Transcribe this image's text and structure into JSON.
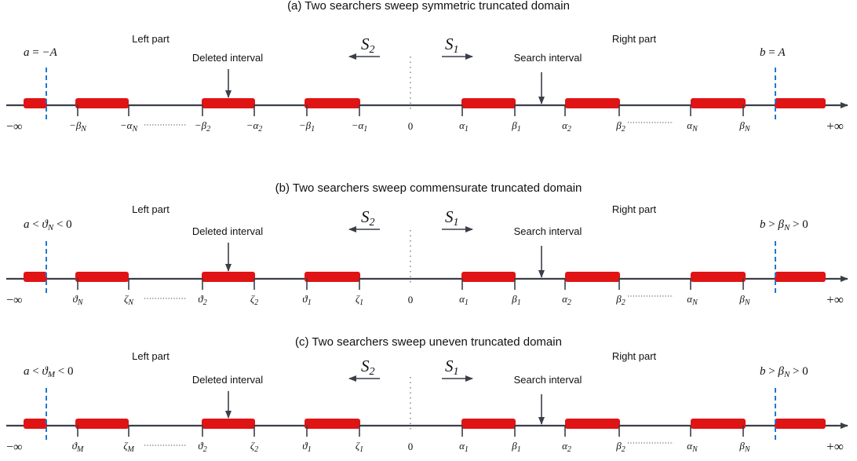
{
  "panels": [
    {
      "title": "(a) Two searchers  sweep symmetric truncated domain",
      "left_part": "Left part",
      "right_part": "Right part",
      "deleted": "Deleted interval",
      "search": "Search interval",
      "searcher_left": {
        "main": "S",
        "sub": "2"
      },
      "searcher_right": {
        "main": "S",
        "sub": "1"
      },
      "bound_left": [
        {
          "t": "a",
          "i": true
        },
        {
          "t": " = ",
          "i": false
        },
        {
          "t": "−A",
          "i": true
        }
      ],
      "bound_right": [
        {
          "t": "b",
          "i": true
        },
        {
          "t": " = ",
          "i": false
        },
        {
          "t": "A",
          "i": true
        }
      ],
      "neg_inf": "−∞",
      "pos_inf": "+∞",
      "zero": "0",
      "left_ticks": [
        {
          "pre": "−",
          "main": "β",
          "sub": "N"
        },
        {
          "pre": "−",
          "main": "α",
          "sub": "N"
        },
        {
          "pre": "−",
          "main": "β",
          "sub": "2"
        },
        {
          "pre": "−",
          "main": "α",
          "sub": "2"
        },
        {
          "pre": "−",
          "main": "β",
          "sub": "1"
        },
        {
          "pre": "−",
          "main": "α",
          "sub": "1"
        }
      ],
      "right_ticks": [
        {
          "pre": "",
          "main": "α",
          "sub": "1"
        },
        {
          "pre": "",
          "main": "β",
          "sub": "1"
        },
        {
          "pre": "",
          "main": "α",
          "sub": "2"
        },
        {
          "pre": "",
          "main": "β",
          "sub": "2"
        },
        {
          "pre": "",
          "main": "α",
          "sub": "N"
        },
        {
          "pre": "",
          "main": "β",
          "sub": "N"
        }
      ]
    },
    {
      "title": "(b) Two searchers  sweep commensurate truncated domain",
      "left_part": "Left part",
      "right_part": "Right part",
      "deleted": "Deleted interval",
      "search": "Search interval",
      "searcher_left": {
        "main": "S",
        "sub": "2"
      },
      "searcher_right": {
        "main": "S",
        "sub": "1"
      },
      "bound_left": [
        {
          "t": "a",
          "i": true
        },
        {
          "t": " < ",
          "i": false
        },
        {
          "t": "ϑ",
          "i": true
        },
        {
          "t": "N",
          "i": true,
          "sub": true
        },
        {
          "t": " < 0",
          "i": false
        }
      ],
      "bound_right": [
        {
          "t": "b",
          "i": true
        },
        {
          "t": " > ",
          "i": false
        },
        {
          "t": "β",
          "i": true
        },
        {
          "t": "N",
          "i": true,
          "sub": true
        },
        {
          "t": " > 0",
          "i": false
        }
      ],
      "neg_inf": "−∞",
      "pos_inf": "+∞",
      "zero": "0",
      "left_ticks": [
        {
          "pre": "",
          "main": "ϑ",
          "sub": "N"
        },
        {
          "pre": "",
          "main": "ζ",
          "sub": "N"
        },
        {
          "pre": "",
          "main": "ϑ",
          "sub": "2"
        },
        {
          "pre": "",
          "main": "ζ",
          "sub": "2"
        },
        {
          "pre": "",
          "main": "ϑ",
          "sub": "1"
        },
        {
          "pre": "",
          "main": "ζ",
          "sub": "1"
        }
      ],
      "right_ticks": [
        {
          "pre": "",
          "main": "α",
          "sub": "1"
        },
        {
          "pre": "",
          "main": "β",
          "sub": "1"
        },
        {
          "pre": "",
          "main": "α",
          "sub": "2"
        },
        {
          "pre": "",
          "main": "β",
          "sub": "2"
        },
        {
          "pre": "",
          "main": "α",
          "sub": "N"
        },
        {
          "pre": "",
          "main": "β",
          "sub": "N"
        }
      ]
    },
    {
      "title": "(c) Two searchers  sweep uneven truncated domain",
      "left_part": "Left part",
      "right_part": "Right part",
      "deleted": "Deleted interval",
      "search": "Search interval",
      "searcher_left": {
        "main": "S",
        "sub": "2"
      },
      "searcher_right": {
        "main": "S",
        "sub": "1"
      },
      "bound_left": [
        {
          "t": "a",
          "i": true
        },
        {
          "t": " < ",
          "i": false
        },
        {
          "t": "ϑ",
          "i": true
        },
        {
          "t": "M",
          "i": true,
          "sub": true
        },
        {
          "t": " < 0",
          "i": false
        }
      ],
      "bound_right": [
        {
          "t": "b",
          "i": true
        },
        {
          "t": " > ",
          "i": false
        },
        {
          "t": "β",
          "i": true
        },
        {
          "t": "N",
          "i": true,
          "sub": true
        },
        {
          "t": " > 0",
          "i": false
        }
      ],
      "neg_inf": "−∞",
      "pos_inf": "+∞",
      "zero": "0",
      "left_ticks": [
        {
          "pre": "",
          "main": "ϑ",
          "sub": "M"
        },
        {
          "pre": "",
          "main": "ζ",
          "sub": "M"
        },
        {
          "pre": "",
          "main": "ϑ",
          "sub": "2"
        },
        {
          "pre": "",
          "main": "ζ",
          "sub": "2"
        },
        {
          "pre": "",
          "main": "ϑ",
          "sub": "1"
        },
        {
          "pre": "",
          "main": "ζ",
          "sub": "1"
        }
      ],
      "right_ticks": [
        {
          "pre": "",
          "main": "α",
          "sub": "1"
        },
        {
          "pre": "",
          "main": "β",
          "sub": "1"
        },
        {
          "pre": "",
          "main": "α",
          "sub": "2"
        },
        {
          "pre": "",
          "main": "β",
          "sub": "2"
        },
        {
          "pre": "",
          "main": "α",
          "sub": "N"
        },
        {
          "pre": "",
          "main": "β",
          "sub": "N"
        }
      ]
    }
  ]
}
